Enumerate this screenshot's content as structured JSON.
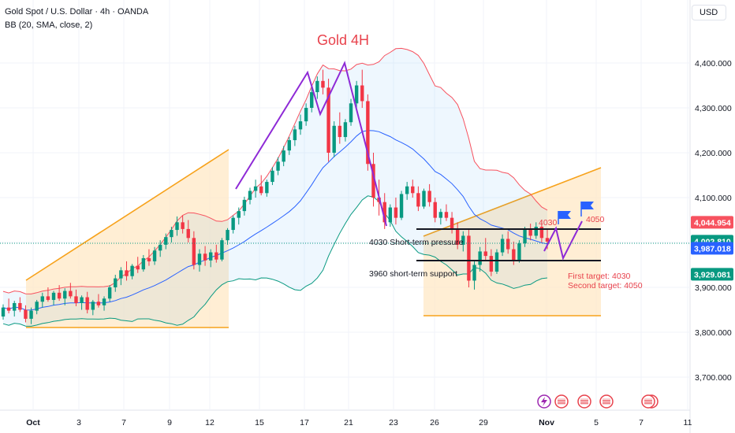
{
  "header": {
    "title": "Gold Spot / U.S. Dollar · 4h · OANDA",
    "indicator": "BB (20, SMA, close, 2)",
    "currency_button": "USD"
  },
  "chart_data": {
    "type": "candlestick",
    "title": "Gold 4H",
    "y_axis": {
      "ticks": [
        "4,400.000",
        "4,300.000",
        "4,200.000",
        "4,100.000",
        "4,000.000",
        "3,900.000",
        "3,800.000",
        "3,700.000"
      ],
      "tick_values": [
        4400,
        4300,
        4200,
        4100,
        4000,
        3900,
        3800,
        3700
      ],
      "ylim": [
        3660,
        4500
      ],
      "side": "right"
    },
    "x_axis": {
      "ticks": [
        "Oct",
        "3",
        "7",
        "9",
        "12",
        "15",
        "17",
        "21",
        "23",
        "26",
        "29",
        "Nov",
        "5",
        "7",
        "11"
      ],
      "bold_ticks": [
        "Oct",
        "Nov"
      ]
    },
    "price_labels": [
      {
        "value": 4044.954,
        "text": "4,044.954",
        "color": "#f7525f"
      },
      {
        "value": 4002.81,
        "text": "4,002.810",
        "color": "#089981"
      },
      {
        "value": 3987.018,
        "text": "3,987.018",
        "color": "#2962ff"
      },
      {
        "value": 3929.081,
        "text": "3,929.081",
        "color": "#089981"
      }
    ],
    "annotations": {
      "pressure_label": "4030 Short-term pressure",
      "support_label": "3960 short-term support",
      "level_4030": "4030",
      "level_4050": "4050",
      "first_target": "First target: 4030",
      "second_target": "Second target: 4050"
    },
    "horizontal_levels": [
      4030,
      3960
    ],
    "bollinger": {
      "period": 20,
      "type": "SMA",
      "source": "close",
      "stddev": 2
    },
    "candles_ohlc": [
      [
        3835,
        3862,
        3828,
        3855
      ],
      [
        3855,
        3875,
        3842,
        3848
      ],
      [
        3848,
        3870,
        3835,
        3865
      ],
      [
        3865,
        3878,
        3845,
        3850
      ],
      [
        3850,
        3860,
        3822,
        3830
      ],
      [
        3830,
        3855,
        3818,
        3848
      ],
      [
        3848,
        3872,
        3840,
        3868
      ],
      [
        3868,
        3888,
        3855,
        3880
      ],
      [
        3880,
        3900,
        3868,
        3872
      ],
      [
        3872,
        3892,
        3860,
        3888
      ],
      [
        3888,
        3905,
        3870,
        3875
      ],
      [
        3875,
        3898,
        3860,
        3892
      ],
      [
        3892,
        3910,
        3875,
        3880
      ],
      [
        3880,
        3895,
        3858,
        3865
      ],
      [
        3865,
        3882,
        3850,
        3878
      ],
      [
        3878,
        3890,
        3842,
        3850
      ],
      [
        3850,
        3872,
        3838,
        3868
      ],
      [
        3868,
        3885,
        3855,
        3860
      ],
      [
        3860,
        3880,
        3848,
        3875
      ],
      [
        3875,
        3905,
        3868,
        3900
      ],
      [
        3900,
        3928,
        3890,
        3920
      ],
      [
        3920,
        3945,
        3905,
        3938
      ],
      [
        3938,
        3958,
        3915,
        3925
      ],
      [
        3925,
        3952,
        3918,
        3948
      ],
      [
        3948,
        3968,
        3932,
        3940
      ],
      [
        3940,
        3972,
        3935,
        3965
      ],
      [
        3965,
        3985,
        3948,
        3958
      ],
      [
        3958,
        3990,
        3950,
        3982
      ],
      [
        3982,
        4005,
        3968,
        3995
      ],
      [
        3995,
        4020,
        3985,
        4012
      ],
      [
        4012,
        4035,
        4000,
        4028
      ],
      [
        4028,
        4058,
        4015,
        4045
      ],
      [
        4045,
        4060,
        4020,
        4030
      ],
      [
        4030,
        4050,
        4000,
        4010
      ],
      [
        4010,
        4025,
        3940,
        3950
      ],
      [
        3950,
        3985,
        3935,
        3975
      ],
      [
        3975,
        3992,
        3948,
        3960
      ],
      [
        3960,
        3985,
        3945,
        3978
      ],
      [
        3978,
        3995,
        3955,
        3962
      ],
      [
        3962,
        4010,
        3958,
        4005
      ],
      [
        4005,
        4032,
        3995,
        4028
      ],
      [
        4028,
        4060,
        4020,
        4055
      ],
      [
        4055,
        4078,
        4040,
        4070
      ],
      [
        4070,
        4102,
        4060,
        4095
      ],
      [
        4095,
        4122,
        4085,
        4115
      ],
      [
        4115,
        4140,
        4100,
        4125
      ],
      [
        4125,
        4150,
        4105,
        4110
      ],
      [
        4110,
        4140,
        4102,
        4135
      ],
      [
        4135,
        4168,
        4128,
        4160
      ],
      [
        4160,
        4190,
        4150,
        4180
      ],
      [
        4180,
        4215,
        4170,
        4205
      ],
      [
        4205,
        4235,
        4195,
        4228
      ],
      [
        4228,
        4260,
        4215,
        4252
      ],
      [
        4252,
        4285,
        4240,
        4270
      ],
      [
        4270,
        4310,
        4260,
        4300
      ],
      [
        4300,
        4345,
        4290,
        4335
      ],
      [
        4335,
        4370,
        4320,
        4360
      ],
      [
        4360,
        4385,
        4330,
        4345
      ],
      [
        4345,
        4365,
        4180,
        4200
      ],
      [
        4200,
        4270,
        4190,
        4260
      ],
      [
        4260,
        4290,
        4220,
        4235
      ],
      [
        4235,
        4275,
        4225,
        4268
      ],
      [
        4268,
        4320,
        4260,
        4310
      ],
      [
        4310,
        4360,
        4300,
        4350
      ],
      [
        4350,
        4385,
        4300,
        4315
      ],
      [
        4315,
        4330,
        4160,
        4175
      ],
      [
        4175,
        4200,
        4080,
        4100
      ],
      [
        4100,
        4140,
        4060,
        4090
      ],
      [
        4090,
        4110,
        4030,
        4045
      ],
      [
        4045,
        4085,
        4035,
        4078
      ],
      [
        4078,
        4100,
        4040,
        4055
      ],
      [
        4055,
        4115,
        4050,
        4108
      ],
      [
        4108,
        4135,
        4095,
        4125
      ],
      [
        4125,
        4140,
        4100,
        4110
      ],
      [
        4110,
        4125,
        4070,
        4080
      ],
      [
        4080,
        4120,
        4075,
        4115
      ],
      [
        4115,
        4130,
        4080,
        4090
      ],
      [
        4090,
        4100,
        4045,
        4055
      ],
      [
        4055,
        4075,
        4040,
        4068
      ],
      [
        4068,
        4085,
        4048,
        4055
      ],
      [
        4055,
        4068,
        4020,
        4030
      ],
      [
        4030,
        4045,
        3985,
        3995
      ],
      [
        3995,
        4025,
        3980,
        4015
      ],
      [
        4015,
        4030,
        3900,
        3915
      ],
      [
        3915,
        3960,
        3895,
        3950
      ],
      [
        3950,
        3990,
        3935,
        3980
      ],
      [
        3980,
        4010,
        3960,
        3970
      ],
      [
        3970,
        3985,
        3925,
        3935
      ],
      [
        3935,
        3985,
        3930,
        3978
      ],
      [
        3978,
        4018,
        3970,
        4008
      ],
      [
        4008,
        4025,
        3975,
        3985
      ],
      [
        3985,
        4002,
        3950,
        3960
      ],
      [
        3960,
        4005,
        3955,
        3998
      ],
      [
        3998,
        4035,
        3990,
        4028
      ],
      [
        4028,
        4042,
        4005,
        4015
      ],
      [
        4015,
        4045,
        4008,
        4035
      ],
      [
        4035,
        4048,
        4000,
        4010
      ],
      [
        4010,
        4030,
        3985,
        4002
      ]
    ]
  }
}
